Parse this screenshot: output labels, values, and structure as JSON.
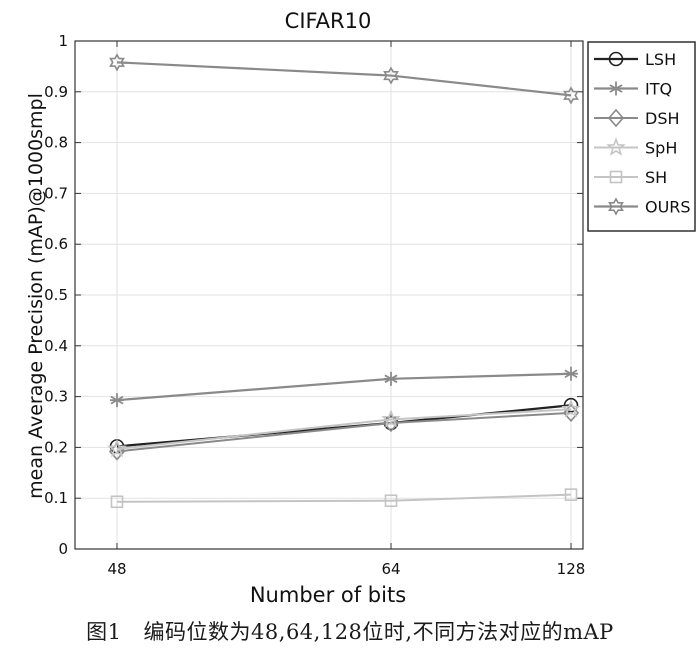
{
  "caption": {
    "label": "图1",
    "text": "编码位数为48,64,128位时,不同方法对应的mAP"
  },
  "chart_data": {
    "type": "line",
    "title": "CIFAR10",
    "xlabel": "Number of bits",
    "ylabel": "mean Average Precision (mAP)@1000smpl",
    "x": [
      48,
      64,
      128
    ],
    "x_tick_labels": [
      "48",
      "64",
      "128"
    ],
    "ylim": [
      0,
      1
    ],
    "y_ticks": [
      0,
      0.1,
      0.2,
      0.3,
      0.4,
      0.5,
      0.6,
      0.7,
      0.8,
      0.9,
      1
    ],
    "y_tick_labels": [
      "0",
      "0.1",
      "0.2",
      "0.3",
      "0.4",
      "0.5",
      "0.6",
      "0.7",
      "0.8",
      "0.9",
      "1"
    ],
    "grid": true,
    "legend_position": "outside-top-right",
    "series": [
      {
        "name": "LSH",
        "values": [
          0.202,
          0.248,
          0.283
        ],
        "marker": "circle",
        "color": "#222222",
        "width": 2.2
      },
      {
        "name": "ITQ",
        "values": [
          0.293,
          0.335,
          0.345
        ],
        "marker": "asterisk",
        "color": "#8a8a8a",
        "width": 2.2
      },
      {
        "name": "DSH",
        "values": [
          0.192,
          0.248,
          0.268
        ],
        "marker": "diamond",
        "color": "#8a8a8a",
        "width": 2.0
      },
      {
        "name": "SpH",
        "values": [
          0.197,
          0.255,
          0.275
        ],
        "marker": "star",
        "color": "#c4c4c4",
        "width": 2.0
      },
      {
        "name": "SH",
        "values": [
          0.093,
          0.095,
          0.107
        ],
        "marker": "square",
        "color": "#c4c4c4",
        "width": 2.0
      },
      {
        "name": "OURS",
        "values": [
          0.958,
          0.932,
          0.893
        ],
        "marker": "hexagram",
        "color": "#8a8a8a",
        "width": 2.2
      }
    ]
  }
}
